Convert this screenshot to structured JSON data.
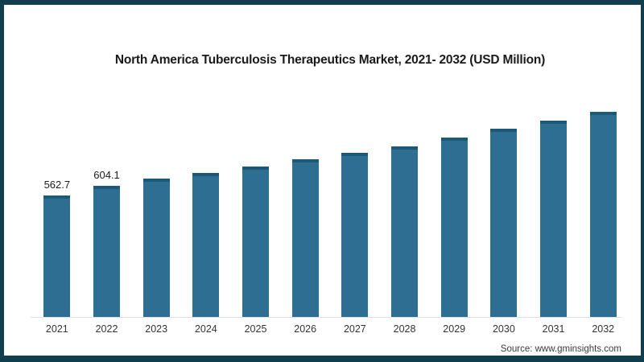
{
  "frame": {
    "background": "#ffffff",
    "border_color": "#113e4d"
  },
  "chart_data": {
    "type": "bar",
    "title": "North America Tuberculosis Therapeutics Market, 2021- 2032 (USD Million)",
    "categories": [
      "2021",
      "2022",
      "2023",
      "2024",
      "2025",
      "2026",
      "2027",
      "2028",
      "2029",
      "2030",
      "2031",
      "2032"
    ],
    "values": [
      562.7,
      604.1,
      640,
      665,
      693,
      728,
      757,
      789,
      829,
      868,
      907,
      948
    ],
    "value_labels": [
      "562.7",
      "604.1",
      "",
      "",
      "",
      "",
      "",
      "",
      "",
      "",
      "",
      ""
    ],
    "bar_color": "#2e6e93",
    "bar_cap_color": "#1c5878",
    "axis_line_color": "#e0e0e0",
    "xlabel": "",
    "ylabel": "",
    "ylim": [
      0,
      1000
    ],
    "grid": false,
    "legend": "none"
  },
  "footer": {
    "source_label": "Source: www.gminsights.com"
  }
}
